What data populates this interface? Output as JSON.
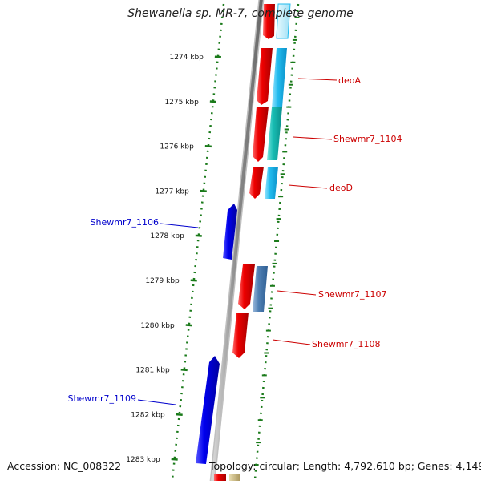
{
  "title": "Shewanella sp. MR-7, complete genome",
  "footer": {
    "accession": "Accession: NC_008322",
    "summary": "Topology: circular; Length: 4,792,610 bp; Genes: 4,149"
  },
  "ticks": [
    {
      "label": "1274 kbp"
    },
    {
      "label": "1275 kbp"
    },
    {
      "label": "1276 kbp"
    },
    {
      "label": "1277 kbp"
    },
    {
      "label": "1278 kbp"
    },
    {
      "label": "1279 kbp"
    },
    {
      "label": "1280 kbp"
    },
    {
      "label": "1281 kbp"
    },
    {
      "label": "1282 kbp"
    },
    {
      "label": "1283 kbp"
    }
  ],
  "genes": [
    {
      "name": "deoA",
      "strand": "forward"
    },
    {
      "name": "Shewmr7_1104",
      "strand": "forward"
    },
    {
      "name": "deoD",
      "strand": "forward"
    },
    {
      "name": "Shewmr7_1106",
      "strand": "reverse"
    },
    {
      "name": "Shewmr7_1107",
      "strand": "forward"
    },
    {
      "name": "Shewmr7_1108",
      "strand": "forward"
    },
    {
      "name": "Shewmr7_1109",
      "strand": "reverse"
    }
  ],
  "colors": {
    "forward": "#ee0000",
    "reverse": "#0000ee",
    "backbone": "#888888",
    "ticks": "#1a7a1a",
    "cyan": "#22bbee"
  }
}
